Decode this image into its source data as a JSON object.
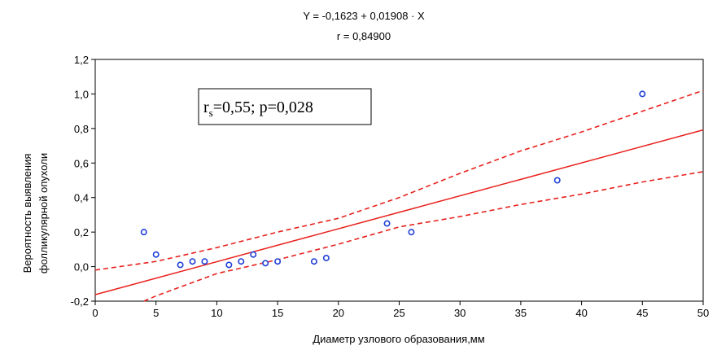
{
  "chart_data": {
    "type": "scatter",
    "title_line1": "Y  = -0,1623 + 0,01908 · X",
    "title_line2": "r  = 0,84900",
    "xlabel": "Диаметр узлового образования,мм",
    "ylabel_line1": "Вероятность выявления",
    "ylabel_line2": "фолликулярной опухоли",
    "xlim": [
      0,
      50
    ],
    "ylim": [
      -0.2,
      1.2
    ],
    "x_ticks": [
      0,
      5,
      10,
      15,
      20,
      25,
      30,
      35,
      40,
      45,
      50
    ],
    "x_tick_labels": [
      "0",
      "5",
      "10",
      "15",
      "20",
      "25",
      "30",
      "35",
      "40",
      "45",
      "50"
    ],
    "y_ticks": [
      -0.2,
      0.0,
      0.2,
      0.4,
      0.6,
      0.8,
      1.0,
      1.2
    ],
    "y_tick_labels": [
      "-0,2",
      "0,0",
      "0,2",
      "0,4",
      "0,6",
      "0,8",
      "1,0",
      "1,2"
    ],
    "annotation": {
      "r_main": "r",
      "r_sub": "s",
      "rest": "=0,55; p=0,028"
    },
    "regression": {
      "intercept": -0.1623,
      "slope": 0.01908
    },
    "points": [
      {
        "x": 4,
        "y": 0.2
      },
      {
        "x": 5,
        "y": 0.07
      },
      {
        "x": 7,
        "y": 0.01
      },
      {
        "x": 8,
        "y": 0.03
      },
      {
        "x": 9,
        "y": 0.03
      },
      {
        "x": 11,
        "y": 0.01
      },
      {
        "x": 12,
        "y": 0.03
      },
      {
        "x": 13,
        "y": 0.07
      },
      {
        "x": 14,
        "y": 0.02
      },
      {
        "x": 15,
        "y": 0.03
      },
      {
        "x": 18,
        "y": 0.03
      },
      {
        "x": 19,
        "y": 0.05
      },
      {
        "x": 24,
        "y": 0.25
      },
      {
        "x": 26,
        "y": 0.2
      },
      {
        "x": 38,
        "y": 0.5
      },
      {
        "x": 45,
        "y": 1.0
      }
    ],
    "confidence_band": {
      "upper": [
        {
          "x": 0,
          "y": -0.02
        },
        {
          "x": 5,
          "y": 0.03
        },
        {
          "x": 10,
          "y": 0.11
        },
        {
          "x": 15,
          "y": 0.2
        },
        {
          "x": 20,
          "y": 0.28
        },
        {
          "x": 25,
          "y": 0.4
        },
        {
          "x": 30,
          "y": 0.54
        },
        {
          "x": 35,
          "y": 0.67
        },
        {
          "x": 40,
          "y": 0.78
        },
        {
          "x": 45,
          "y": 0.9
        },
        {
          "x": 50,
          "y": 1.02
        }
      ],
      "lower": [
        {
          "x": 4,
          "y": -0.2
        },
        {
          "x": 5,
          "y": -0.17
        },
        {
          "x": 10,
          "y": -0.04
        },
        {
          "x": 15,
          "y": 0.04
        },
        {
          "x": 20,
          "y": 0.13
        },
        {
          "x": 25,
          "y": 0.23
        },
        {
          "x": 30,
          "y": 0.29
        },
        {
          "x": 35,
          "y": 0.36
        },
        {
          "x": 40,
          "y": 0.42
        },
        {
          "x": 45,
          "y": 0.49
        },
        {
          "x": 50,
          "y": 0.55
        }
      ]
    },
    "grid": false,
    "colors": {
      "line": "#e8211d",
      "point": "#1f3fd6",
      "axis": "#000000"
    }
  }
}
